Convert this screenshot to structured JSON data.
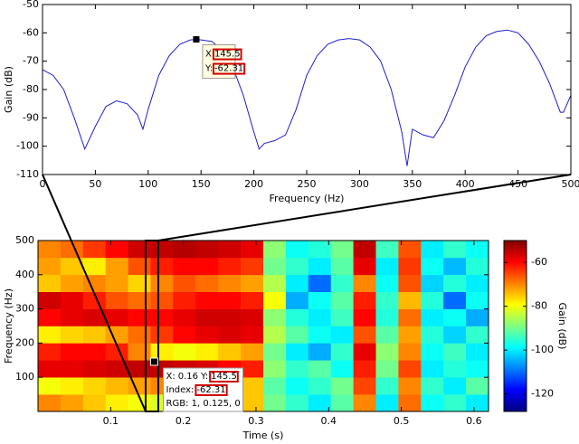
{
  "chart_data": [
    {
      "type": "line",
      "xlabel": "Frequency (Hz)",
      "ylabel": "Gain (dB)",
      "x": [
        0,
        10,
        20,
        30,
        40,
        50,
        60,
        70,
        80,
        90,
        95,
        100,
        110,
        120,
        130,
        140,
        145.5,
        150,
        160,
        170,
        180,
        190,
        200,
        205,
        210,
        220,
        230,
        240,
        250,
        260,
        270,
        280,
        290,
        300,
        310,
        320,
        330,
        340,
        345,
        350,
        360,
        370,
        380,
        390,
        400,
        410,
        420,
        430,
        440,
        450,
        460,
        470,
        480,
        490,
        493,
        500
      ],
      "series": [
        {
          "color": "#1f1fcf",
          "values": [
            -73,
            -75,
            -80,
            -90,
            -101,
            -93,
            -86,
            -84,
            -85,
            -89,
            -94,
            -87,
            -75,
            -68,
            -64,
            -62.5,
            -62.31,
            -62.5,
            -63,
            -66,
            -72,
            -82,
            -95,
            -101,
            -99,
            -98,
            -96,
            -87,
            -75,
            -68,
            -64,
            -62.5,
            -62,
            -62.5,
            -65,
            -70,
            -80,
            -95,
            -107,
            -94,
            -96,
            -97,
            -91,
            -82,
            -72,
            -65,
            -61,
            -59.5,
            -59,
            -60,
            -64,
            -70,
            -78,
            -88,
            -88,
            -82
          ]
        }
      ],
      "xlim": [
        0,
        500
      ],
      "ylim": [
        -110,
        -50
      ],
      "xticks": [
        0,
        50,
        100,
        150,
        200,
        250,
        300,
        350,
        400,
        450,
        500
      ],
      "yticks": [
        -110,
        -100,
        -90,
        -80,
        -70,
        -60,
        -50
      ],
      "datatip": {
        "x_label": "X:",
        "x": 145.5,
        "y_label": "Y:",
        "y": -62.31
      }
    },
    {
      "type": "heatmap",
      "xlabel": "Time (s)",
      "ylabel": "Frequency (Hz)",
      "x_edges": [
        0,
        0.031,
        0.062,
        0.093,
        0.124,
        0.155,
        0.186,
        0.217,
        0.248,
        0.279,
        0.31,
        0.341,
        0.372,
        0.403,
        0.434,
        0.465,
        0.496,
        0.527,
        0.558,
        0.589,
        0.62
      ],
      "y_edges": [
        0,
        50,
        100,
        150,
        200,
        250,
        300,
        350,
        400,
        450,
        500
      ],
      "values": [
        [
          -70,
          -72,
          -75,
          -78,
          -80,
          -82,
          -80,
          -78,
          -76,
          -75,
          -90,
          -95,
          -100,
          -92,
          -70,
          -100,
          -68,
          -98,
          -95,
          -100
        ],
        [
          -80,
          -78,
          -76,
          -74,
          -72,
          -70,
          -70,
          -72,
          -74,
          -75,
          -92,
          -98,
          -95,
          -90,
          -65,
          -95,
          -70,
          -95,
          -100,
          -92
        ],
        [
          -58,
          -58,
          -57,
          -56,
          -55,
          -55,
          -56,
          -57,
          -60,
          -62,
          -88,
          -95,
          -92,
          -98,
          -62,
          -90,
          -65,
          -100,
          -96,
          -98
        ],
        [
          -62,
          -60,
          -60,
          -62,
          -70,
          -78,
          -80,
          -78,
          -75,
          -72,
          -90,
          -100,
          -105,
          -95,
          -58,
          -88,
          -70,
          -98,
          -94,
          -100
        ],
        [
          -78,
          -76,
          -75,
          -72,
          -68,
          -64,
          -60,
          -58,
          -57,
          -58,
          -85,
          -92,
          -98,
          -100,
          -66,
          -92,
          -72,
          -96,
          -102,
          -95
        ],
        [
          -60,
          -58,
          -57,
          -58,
          -60,
          -60,
          -58,
          -56,
          -56,
          -57,
          -88,
          -96,
          -100,
          -94,
          -60,
          -96,
          -68,
          -100,
          -98,
          -105
        ],
        [
          -56,
          -58,
          -62,
          -66,
          -68,
          -66,
          -62,
          -60,
          -60,
          -62,
          -80,
          -105,
          -98,
          -92,
          -62,
          -95,
          -74,
          -96,
          -110,
          -98
        ],
        [
          -75,
          -72,
          -70,
          -72,
          -76,
          -70,
          -66,
          -68,
          -70,
          -72,
          -85,
          -100,
          -110,
          -95,
          -70,
          -98,
          -66,
          -102,
          -96,
          -100
        ],
        [
          -72,
          -75,
          -78,
          -72,
          -66,
          -62,
          -60,
          -60,
          -62,
          -64,
          -90,
          -95,
          -100,
          -92,
          -58,
          -100,
          -64,
          -98,
          -104,
          -96
        ],
        [
          -70,
          -68,
          -64,
          -60,
          -56,
          -55,
          -54,
          -55,
          -56,
          -58,
          -88,
          -98,
          -96,
          -90,
          -55,
          -94,
          -66,
          -100,
          -95,
          -98
        ]
      ],
      "xlim": [
        0,
        0.62
      ],
      "ylim": [
        0,
        500
      ],
      "xticks": [
        0.1,
        0.2,
        0.3,
        0.4,
        0.5,
        0.6
      ],
      "yticks": [
        100,
        200,
        300,
        400,
        500
      ],
      "colorbar": {
        "label": "Gain (dB)",
        "clim": [
          -128,
          -50
        ],
        "ticks": [
          -120,
          -100,
          -80,
          -60
        ],
        "colormap": "jet"
      },
      "datatip": {
        "x_label": "X:",
        "x": 0.16,
        "y_label": "Y:",
        "y": 145.5,
        "index_label": "Index:",
        "index": -62.31,
        "rgb": "RGB: 1, 0.125, 0"
      }
    }
  ]
}
